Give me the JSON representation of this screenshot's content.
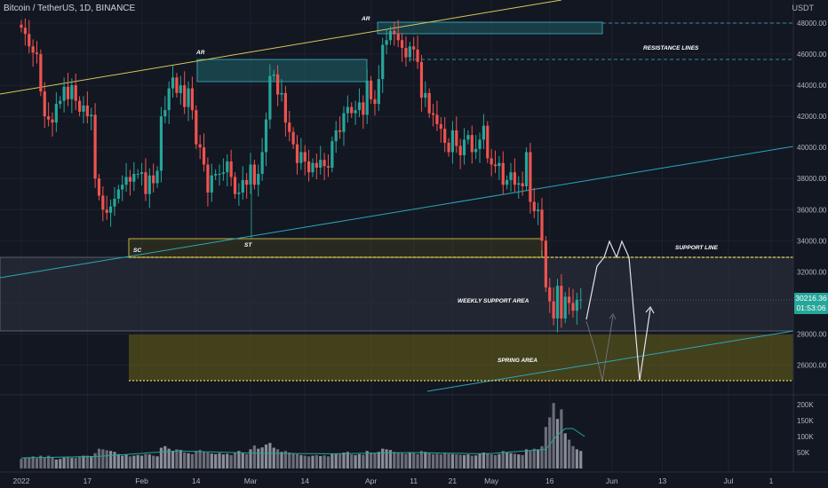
{
  "header": {
    "title": "Bitcoin / TetherUS, 1D, BINANCE",
    "currency": "USDT"
  },
  "price_tag": {
    "price": "30216.36",
    "countdown": "01:53:06"
  },
  "colors": {
    "up": "#26a69a",
    "down": "#ef5350",
    "bg": "#131722",
    "grid": "#1e222d",
    "accent": "#26a69a"
  },
  "chart_data": {
    "type": "candlestick",
    "y_axis": {
      "min": 24000,
      "max": 49000,
      "ticks": [
        26000,
        28000,
        30000,
        32000,
        34000,
        36000,
        38000,
        40000,
        42000,
        44000,
        46000,
        48000
      ],
      "tick_labels": [
        "26000.00",
        "28000.00",
        "30000.00",
        "32000.00",
        "34000.00",
        "36000.00",
        "38000.00",
        "40000.00",
        "42000.00",
        "44000.00",
        "46000.00",
        "48000.00"
      ]
    },
    "x_axis": {
      "labels": [
        "2022",
        "17",
        "Feb",
        "14",
        "Mar",
        "14",
        "Apr",
        "11",
        "21",
        "May",
        "16",
        "Jun",
        "13",
        "Jul",
        "1"
      ],
      "label_days": [
        0,
        17,
        31,
        45,
        59,
        73,
        90,
        101,
        111,
        121,
        136,
        152,
        165,
        182,
        193
      ]
    },
    "volume_axis": {
      "ticks": [
        50000,
        100000,
        150000,
        200000
      ],
      "tick_labels": [
        "50K",
        "100K",
        "150K",
        "200K"
      ]
    },
    "closes": [
      47700,
      47300,
      46500,
      46100,
      46000,
      43600,
      42000,
      41800,
      41600,
      42800,
      43000,
      43900,
      43100,
      44000,
      43000,
      42300,
      42700,
      42000,
      42100,
      38000,
      36900,
      36000,
      35800,
      36200,
      36700,
      37300,
      37600,
      38100,
      37800,
      38300,
      38300,
      38400,
      37000,
      38200,
      37700,
      38500,
      42000,
      42400,
      43800,
      44500,
      43500,
      44000,
      42600,
      43800,
      42400,
      40200,
      40000,
      38900,
      37100,
      38200,
      38300,
      38300,
      38400,
      39100,
      38100,
      37000,
      37100,
      37900,
      37600,
      38900,
      37600,
      38300,
      39700,
      41800,
      44600,
      44700,
      43400,
      43500,
      41600,
      41000,
      40200,
      39000,
      39700,
      39100,
      38400,
      39000,
      38700,
      39200,
      38800,
      38700,
      40400,
      41100,
      41000,
      42200,
      42600,
      42200,
      42400,
      42900,
      42100,
      44300,
      43100,
      42800,
      44400,
      46600,
      46900,
      47500,
      47300,
      46900,
      46400,
      45800,
      46500,
      46300,
      45500,
      43200,
      43500,
      42200,
      42100,
      41500,
      41200,
      40300,
      39700,
      41100,
      40100,
      39500,
      40500,
      40800,
      39700,
      39900,
      40500,
      41400,
      39300,
      38900,
      38800,
      39000,
      37600,
      37900,
      38400,
      37600,
      37700,
      37500,
      39700,
      36500,
      35900,
      36000,
      34000,
      31000,
      30100,
      29000,
      31100,
      29000,
      30400,
      30000,
      29500,
      30200,
      30216
    ],
    "volumes": [
      30000,
      35000,
      35000,
      38000,
      32000,
      40000,
      33000,
      40000,
      35000,
      28000,
      30000,
      34000,
      36000,
      33000,
      33000,
      37000,
      40000,
      40000,
      38000,
      48000,
      62000,
      60000,
      57000,
      55000,
      52000,
      45000,
      40000,
      43000,
      38000,
      40000,
      42000,
      40000,
      45000,
      44000,
      40000,
      38000,
      65000,
      70000,
      62000,
      55000,
      60000,
      58000,
      50000,
      48000,
      45000,
      55000,
      58000,
      52000,
      50000,
      47000,
      45000,
      48000,
      44000,
      46000,
      42000,
      50000,
      55000,
      48000,
      45000,
      60000,
      72000,
      62000,
      66000,
      75000,
      80000,
      65000,
      60000,
      52000,
      55000,
      50000,
      48000,
      45000,
      42000,
      40000,
      38000,
      40000,
      42000,
      39000,
      41000,
      38000,
      45000,
      47000,
      45000,
      50000,
      52000,
      44000,
      42000,
      45000,
      43000,
      55000,
      50000,
      48000,
      52000,
      62000,
      60000,
      58000,
      52000,
      50000,
      48000,
      46000,
      50000,
      48000,
      45000,
      55000,
      52000,
      48000,
      45000,
      46000,
      44000,
      48000,
      46000,
      45000,
      44000,
      43000,
      42000,
      44000,
      40000,
      41000,
      46000,
      50000,
      48000,
      44000,
      42000,
      45000,
      55000,
      50000,
      48000,
      46000,
      44000,
      42000,
      60000,
      55000,
      62000,
      60000,
      70000,
      130000,
      160000,
      205000,
      155000,
      185000,
      110000,
      90000,
      70000,
      60000,
      55000
    ],
    "volume_ma_anchor_days": [
      0,
      20,
      40,
      60,
      80,
      100,
      120,
      135,
      138,
      140,
      142,
      145
    ],
    "volume_ma_values": [
      33000,
      38000,
      55000,
      48000,
      46000,
      50000,
      46000,
      60000,
      105000,
      125000,
      125000,
      100000
    ],
    "annotations": {
      "ar_label": "AR",
      "sc_label": "SC",
      "st_label": "ST",
      "resistance_lines": "RESISTANCE LINES",
      "support_line": "SUPPORT LINE",
      "weekly_support_area": "WEEKLY SUPPORT AREA",
      "spring_area": "SPRING AREA"
    },
    "levels": {
      "resistance_1": 48100,
      "resistance_2": 45800,
      "support_line": 34200,
      "weekly_area_top": 33000,
      "weekly_area_bottom": 28100,
      "spring_top": 28000,
      "spring_bottom": 25000
    }
  }
}
